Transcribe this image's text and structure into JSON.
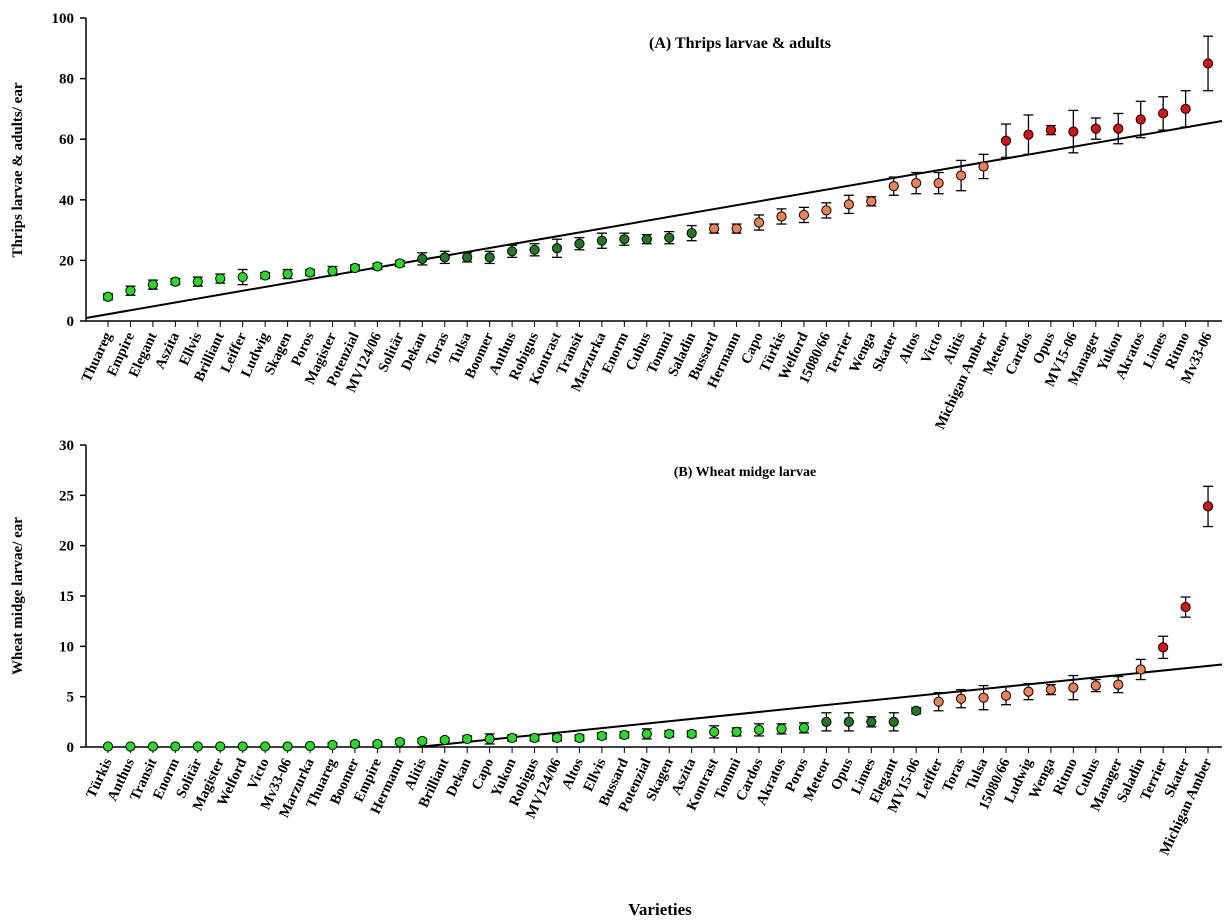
{
  "figure": {
    "xlabel": "Varieties"
  },
  "colors": {
    "light_green": "#22dd22",
    "dark_green": "#1e7a1e",
    "orange": "#f08050",
    "red": "#dd1111"
  },
  "chart_data": [
    {
      "type": "scatter",
      "title": "(A) Thrips larvae & adults",
      "ylabel": "Thrips larvae & adults/ ear",
      "ylim": [
        0,
        100
      ],
      "yticks": [
        0,
        20,
        40,
        60,
        80,
        100
      ],
      "trendline": {
        "y_start": 1,
        "y_end": 66
      },
      "categories": [
        "Thuareg",
        "Empire",
        "Elegant",
        "Aszita",
        "Ellvis",
        "Brilliant",
        "Leiffer",
        "Ludwig",
        "Skagen",
        "Poros",
        "Magister",
        "Potenzial",
        "MV124/06",
        "Solitär",
        "Dekan",
        "Toras",
        "Tulsa",
        "Boomer",
        "Anthus",
        "Robigus",
        "Kontrast",
        "Transit",
        "Marzurka",
        "Enorm",
        "Cubus",
        "Tommi",
        "Saladin",
        "Bussard",
        "Hermann",
        "Capo",
        "Türkis",
        "Welford",
        "15080/66",
        "Terrier",
        "Wenga",
        "Skater",
        "Altos",
        "Victo",
        "Alitis",
        "Michigan Amber",
        "Meteor",
        "Cardos",
        "Opus",
        "MV15-06",
        "Manager",
        "Yukon",
        "Akratos",
        "Limes",
        "Ritmo",
        "Mv33-06"
      ],
      "values": [
        8,
        10,
        12,
        13,
        13,
        14,
        14.5,
        15,
        15.5,
        16,
        16.5,
        17.5,
        18,
        19,
        20.5,
        21,
        21,
        21,
        23,
        23.5,
        24,
        25.5,
        26.5,
        27,
        27,
        27.5,
        29,
        30.5,
        30.5,
        32.5,
        34.5,
        35,
        36.5,
        38.5,
        39.5,
        44.5,
        45.5,
        45.5,
        48,
        51,
        59.5,
        61.5,
        63,
        62.5,
        63.5,
        63.5,
        66.5,
        68.5,
        70,
        85
      ],
      "errors": [
        1,
        1.5,
        1.5,
        1,
        1.5,
        1.5,
        2.5,
        1,
        1.5,
        1,
        1.5,
        1,
        1,
        1,
        2,
        2,
        1.5,
        2,
        2,
        2,
        3,
        2,
        2.5,
        2,
        1.5,
        2,
        2.5,
        1.5,
        1.5,
        2.5,
        2.5,
        2.5,
        2.5,
        3,
        1.5,
        3,
        3.5,
        3.5,
        5,
        4,
        5.5,
        6.5,
        1.5,
        7,
        3.5,
        5,
        6,
        5.5,
        6,
        9
      ],
      "groups": [
        "lg",
        "lg",
        "lg",
        "lg",
        "lg",
        "lg",
        "lg",
        "lg",
        "lg",
        "lg",
        "lg",
        "lg",
        "lg",
        "lg",
        "dg",
        "dg",
        "dg",
        "dg",
        "dg",
        "dg",
        "dg",
        "dg",
        "dg",
        "dg",
        "dg",
        "dg",
        "dg",
        "or",
        "or",
        "or",
        "or",
        "or",
        "or",
        "or",
        "or",
        "or",
        "or",
        "or",
        "or",
        "or",
        "rd",
        "rd",
        "rd",
        "rd",
        "rd",
        "rd",
        "rd",
        "rd",
        "rd",
        "rd"
      ]
    },
    {
      "type": "scatter",
      "title": "(B) Wheat midge larvae",
      "ylabel": "Wheat midge larvae/ ear",
      "ylim": [
        0,
        30
      ],
      "yticks": [
        0,
        5,
        10,
        15,
        20,
        25,
        30
      ],
      "trendline": {
        "x_zero_index": 13.8,
        "y_end": 8.2
      },
      "categories": [
        "Türkis",
        "Anthus",
        "Transit",
        "Enorm",
        "Solitär",
        "Magister",
        "Welford",
        "Victo",
        "Mv33-06",
        "Marzurka",
        "Thuareg",
        "Boomer",
        "Empire",
        "Hermann",
        "Alitis",
        "Brilliant",
        "Dekan",
        "Capo",
        "Yukon",
        "Robigus",
        "MV124/06",
        "Altos",
        "Ellvis",
        "Bussard",
        "Potenzial",
        "Skagen",
        "Aszita",
        "Kontrast",
        "Tommi",
        "Cardos",
        "Akratos",
        "Poros",
        "Meteor",
        "Opus",
        "Limes",
        "Elegant",
        "MV15-06",
        "Leiffer",
        "Toras",
        "Tulsa",
        "15080/66",
        "Ludwig",
        "Wenga",
        "Ritmo",
        "Cubus",
        "Manager",
        "Saladin",
        "Terrier",
        "Skater",
        "Michigan Amber"
      ],
      "values": [
        0.05,
        0.05,
        0.05,
        0.05,
        0.05,
        0.05,
        0.05,
        0.05,
        0.05,
        0.1,
        0.2,
        0.3,
        0.3,
        0.5,
        0.6,
        0.7,
        0.8,
        0.8,
        0.9,
        0.9,
        0.9,
        0.9,
        1.1,
        1.2,
        1.3,
        1.3,
        1.3,
        1.5,
        1.5,
        1.7,
        1.8,
        1.9,
        2.5,
        2.5,
        2.5,
        2.5,
        3.6,
        4.5,
        4.8,
        4.9,
        5.1,
        5.5,
        5.7,
        5.9,
        6.1,
        6.2,
        7.7,
        9.9,
        13.9,
        23.9
      ],
      "errors": [
        0,
        0,
        0,
        0,
        0,
        0,
        0,
        0,
        0,
        0,
        0.2,
        0.2,
        0.2,
        0.2,
        0.2,
        0.2,
        0.3,
        0.5,
        0.3,
        0.3,
        0.3,
        0.3,
        0.3,
        0.3,
        0.5,
        0.3,
        0.3,
        0.6,
        0.4,
        0.6,
        0.5,
        0.5,
        0.9,
        0.9,
        0.5,
        0.9,
        0.3,
        0.9,
        0.9,
        1.2,
        0.9,
        0.8,
        0.5,
        1.2,
        0.6,
        0.8,
        1.0,
        1.1,
        1.0,
        2.0
      ],
      "groups": [
        "lg",
        "lg",
        "lg",
        "lg",
        "lg",
        "lg",
        "lg",
        "lg",
        "lg",
        "lg",
        "lg",
        "lg",
        "lg",
        "lg",
        "lg",
        "lg",
        "lg",
        "lg",
        "lg",
        "lg",
        "lg",
        "lg",
        "lg",
        "lg",
        "lg",
        "lg",
        "lg",
        "lg",
        "lg",
        "lg",
        "lg",
        "lg",
        "dg",
        "dg",
        "dg",
        "dg",
        "dg",
        "or",
        "or",
        "or",
        "or",
        "or",
        "or",
        "or",
        "or",
        "or",
        "or",
        "rd",
        "rd",
        "rd"
      ]
    }
  ]
}
